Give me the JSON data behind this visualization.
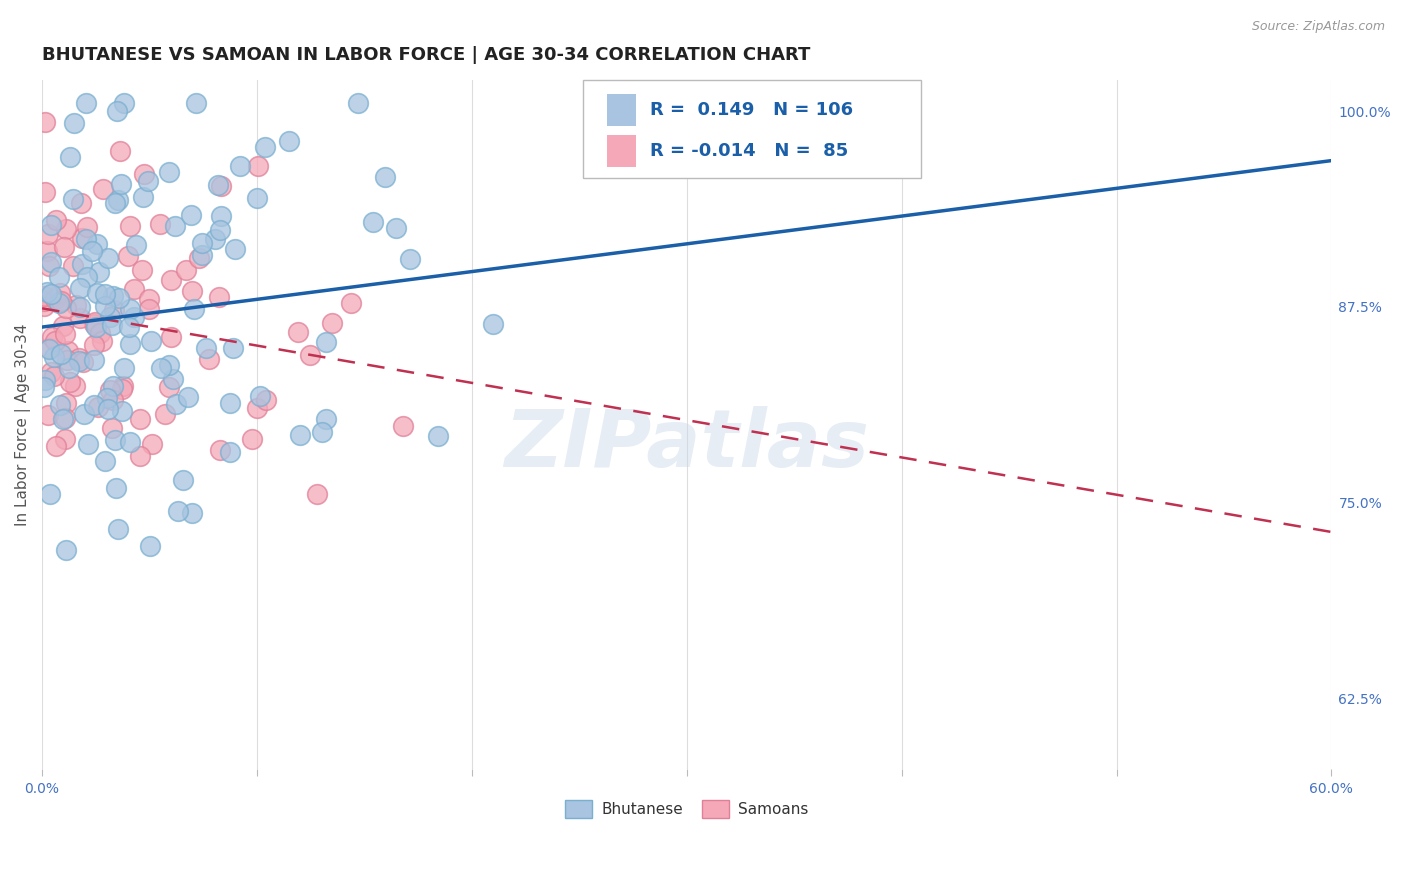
{
  "title": "BHUTANESE VS SAMOAN IN LABOR FORCE | AGE 30-34 CORRELATION CHART",
  "source": "Source: ZipAtlas.com",
  "ylabel": "In Labor Force | Age 30-34",
  "xlim": [
    0.0,
    0.6
  ],
  "ylim": [
    0.58,
    1.02
  ],
  "xticks": [
    0.0,
    0.1,
    0.2,
    0.3,
    0.4,
    0.5,
    0.6
  ],
  "xticklabels": [
    "0.0%",
    "",
    "",
    "",
    "",
    "",
    "60.0%"
  ],
  "yticks_right": [
    1.0,
    0.875,
    0.75,
    0.625
  ],
  "yticklabels_right": [
    "100.0%",
    "87.5%",
    "75.0%",
    "62.5%"
  ],
  "blue_color": "#a8c4e0",
  "blue_edge_color": "#7aafd0",
  "pink_color": "#f4a8b8",
  "pink_edge_color": "#e08098",
  "blue_line_color": "#1a5fa8",
  "pink_line_color": "#c03050",
  "blue_R": 0.149,
  "blue_N": 106,
  "pink_R": -0.014,
  "pink_N": 85,
  "watermark": "ZIPatlas",
  "legend_labels": [
    "Bhutanese",
    "Samoans"
  ],
  "title_fontsize": 13,
  "axis_label_fontsize": 11,
  "tick_fontsize": 10,
  "background_color": "#ffffff",
  "grid_color": "#dddddd",
  "tick_color": "#4472c4",
  "label_color": "#555555"
}
